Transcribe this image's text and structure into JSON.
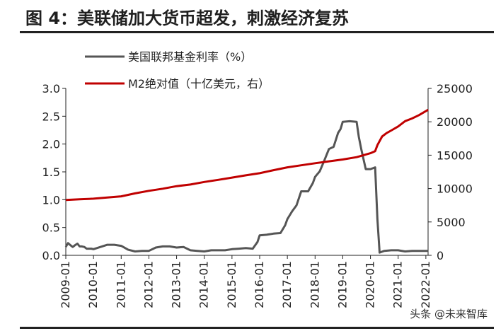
{
  "chart_data": {
    "type": "line",
    "title": "图 4：美联储加大货币超发，刺激经济复苏",
    "x_categories": [
      "2009-01",
      "2010-01",
      "2011-01",
      "2012-01",
      "2013-01",
      "2014-01",
      "2015-01",
      "2016-01",
      "2017-01",
      "2018-01",
      "2019-01",
      "2020-01",
      "2021-01",
      "2022-01"
    ],
    "y_left": {
      "ticks": [
        "0.0",
        "0.5",
        "1.0",
        "1.5",
        "2.0",
        "2.5",
        "3.0"
      ],
      "range": [
        0,
        3.0
      ]
    },
    "y_right": {
      "ticks": [
        "0",
        "5000",
        "10000",
        "15000",
        "20000",
        "25000"
      ],
      "range": [
        0,
        25000
      ]
    },
    "legend": {
      "placement": "top-left"
    },
    "series": [
      {
        "name": "美国联邦基金利率（%）",
        "axis": "left",
        "color": "#555555",
        "x": [
          2009.0,
          2009.08,
          2009.17,
          2009.25,
          2009.33,
          2009.42,
          2009.5,
          2009.58,
          2009.67,
          2009.75,
          2009.83,
          2009.92,
          2010.0,
          2010.25,
          2010.5,
          2010.75,
          2011.0,
          2011.25,
          2011.5,
          2011.75,
          2012.0,
          2012.25,
          2012.5,
          2012.75,
          2013.0,
          2013.25,
          2013.5,
          2013.75,
          2014.0,
          2014.25,
          2014.5,
          2014.75,
          2015.0,
          2015.25,
          2015.5,
          2015.75,
          2015.92,
          2016.0,
          2016.25,
          2016.5,
          2016.75,
          2016.92,
          2017.0,
          2017.17,
          2017.33,
          2017.5,
          2017.75,
          2017.92,
          2018.0,
          2018.17,
          2018.33,
          2018.5,
          2018.67,
          2018.83,
          2018.92,
          2019.0,
          2019.25,
          2019.5,
          2019.58,
          2019.67,
          2019.83,
          2020.0,
          2020.17,
          2020.25,
          2020.33,
          2020.5,
          2020.75,
          2021.0,
          2021.25,
          2021.5,
          2021.75,
          2022.0,
          2022.08
        ],
        "values": [
          0.15,
          0.22,
          0.18,
          0.15,
          0.18,
          0.21,
          0.16,
          0.16,
          0.15,
          0.12,
          0.12,
          0.12,
          0.11,
          0.15,
          0.19,
          0.19,
          0.17,
          0.1,
          0.07,
          0.08,
          0.08,
          0.14,
          0.16,
          0.16,
          0.14,
          0.15,
          0.09,
          0.08,
          0.07,
          0.09,
          0.09,
          0.09,
          0.11,
          0.12,
          0.13,
          0.12,
          0.24,
          0.36,
          0.37,
          0.39,
          0.4,
          0.54,
          0.65,
          0.79,
          0.9,
          1.15,
          1.15,
          1.3,
          1.41,
          1.51,
          1.7,
          1.91,
          1.95,
          2.2,
          2.27,
          2.4,
          2.41,
          2.4,
          2.13,
          1.9,
          1.55,
          1.55,
          1.58,
          0.65,
          0.05,
          0.08,
          0.09,
          0.09,
          0.07,
          0.08,
          0.08,
          0.08,
          0.08
        ]
      },
      {
        "name": "M2绝对值（十亿美元，右）",
        "axis": "right",
        "color": "#c00000",
        "x": [
          2009.0,
          2009.5,
          2010.0,
          2010.5,
          2011.0,
          2011.5,
          2012.0,
          2012.5,
          2013.0,
          2013.5,
          2014.0,
          2014.5,
          2015.0,
          2015.5,
          2016.0,
          2016.5,
          2017.0,
          2017.5,
          2018.0,
          2018.5,
          2019.0,
          2019.5,
          2020.0,
          2020.17,
          2020.25,
          2020.42,
          2020.58,
          2020.75,
          2021.0,
          2021.25,
          2021.5,
          2021.75,
          2022.0,
          2022.08
        ],
        "values": [
          8280,
          8400,
          8480,
          8660,
          8840,
          9280,
          9660,
          9980,
          10360,
          10600,
          10980,
          11300,
          11640,
          11980,
          12300,
          12750,
          13180,
          13480,
          13790,
          14080,
          14350,
          14700,
          15300,
          15600,
          16500,
          17800,
          18300,
          18700,
          19300,
          20100,
          20500,
          21000,
          21600,
          21800
        ]
      }
    ]
  },
  "title": "图 4：美联储加大货币超发，刺激经济复苏",
  "watermark": "头条 @未来智库"
}
